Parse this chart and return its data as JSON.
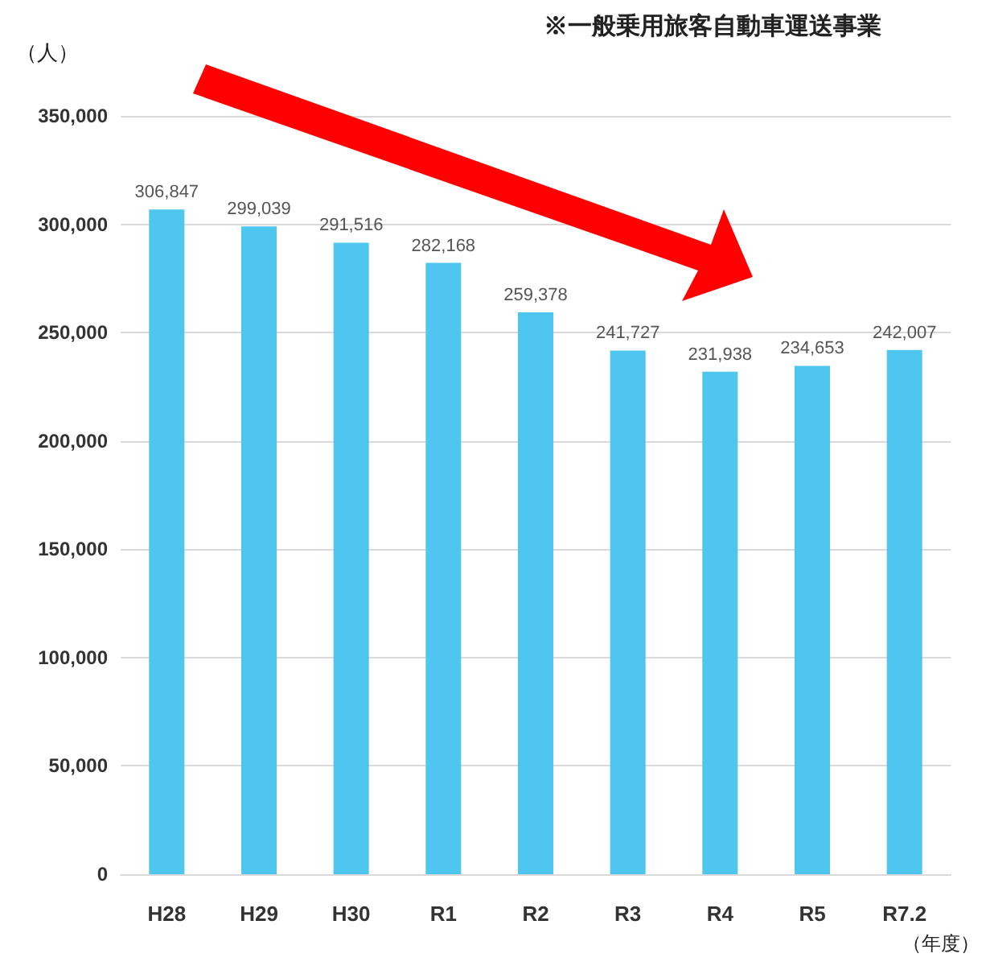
{
  "chart_data": {
    "type": "bar",
    "title": "※一般乗用旅客自動車運送事業",
    "ylabel": "（人）",
    "xlabel": "（年度）",
    "categories": [
      "H28",
      "H29",
      "H30",
      "R1",
      "R2",
      "R3",
      "R4",
      "R5",
      "R7.2"
    ],
    "values": [
      306847,
      299039,
      291516,
      282168,
      259378,
      241727,
      231938,
      234653,
      242007
    ],
    "value_labels": [
      "306,847",
      "299,039",
      "291,516",
      "282,168",
      "259,378",
      "241,727",
      "231,938",
      "234,653",
      "242,007"
    ],
    "color": "#4fc6f0",
    "ylim": [
      0,
      350000
    ],
    "yticks": [
      0,
      {
        "value": 50000,
        "label": "50,000"
      },
      {
        "value": 100000,
        "label": "100,000"
      },
      {
        "value": 150000,
        "label": "150,000"
      },
      {
        "value": 200000,
        "label": "200,000"
      },
      {
        "value": 250000,
        "label": "250,000"
      },
      {
        "value": 300000,
        "label": "300,000"
      },
      {
        "value": 350000,
        "label": "350,000"
      }
    ],
    "grid": "y"
  }
}
